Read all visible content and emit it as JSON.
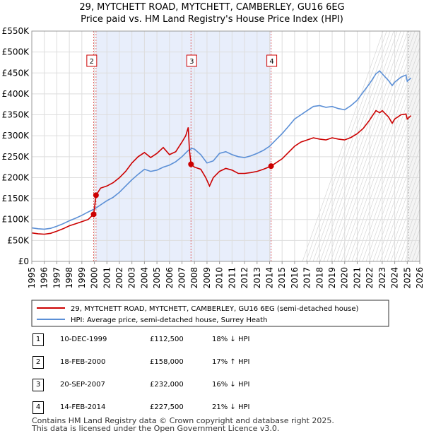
{
  "chart_data": {
    "type": "line",
    "title": "29, MYTCHETT ROAD, MYTCHETT, CAMBERLEY, GU16 6EG",
    "subtitle": "Price paid vs. HM Land Registry's House Price Index (HPI)",
    "xlim": [
      1995,
      2026
    ],
    "ylim": [
      0,
      550000
    ],
    "x_ticks": [
      "1995",
      "1996",
      "1997",
      "1998",
      "1999",
      "2000",
      "2001",
      "2002",
      "2003",
      "2004",
      "2005",
      "2006",
      "2007",
      "2008",
      "2009",
      "2010",
      "2011",
      "2012",
      "2013",
      "2014",
      "2015",
      "2016",
      "2017",
      "2018",
      "2019",
      "2020",
      "2021",
      "2022",
      "2023",
      "2024",
      "2025",
      "2026"
    ],
    "y_ticks": [
      {
        "value": 0,
        "label": "£0"
      },
      {
        "value": 50000,
        "label": "£50K"
      },
      {
        "value": 100000,
        "label": "£100K"
      },
      {
        "value": 150000,
        "label": "£150K"
      },
      {
        "value": 200000,
        "label": "£200K"
      },
      {
        "value": 250000,
        "label": "£250K"
      },
      {
        "value": 300000,
        "label": "£300K"
      },
      {
        "value": 350000,
        "label": "£350K"
      },
      {
        "value": 400000,
        "label": "£400K"
      },
      {
        "value": 450000,
        "label": "£450K"
      },
      {
        "value": 500000,
        "label": "£500K"
      },
      {
        "value": 550000,
        "label": "£550K"
      }
    ],
    "shaded_range": [
      2000.13,
      2014.12
    ],
    "projection_start": 2025.1,
    "series": [
      {
        "name": "29, MYTCHETT ROAD, MYTCHETT, CAMBERLEY, GU16 6EG (semi-detached house)",
        "color": "#cc0000",
        "points": [
          [
            1995.0,
            68000
          ],
          [
            1995.5,
            66000
          ],
          [
            1996.0,
            65000
          ],
          [
            1996.5,
            67000
          ],
          [
            1997.0,
            72000
          ],
          [
            1997.5,
            78000
          ],
          [
            1998.0,
            85000
          ],
          [
            1998.5,
            90000
          ],
          [
            1999.0,
            95000
          ],
          [
            1999.5,
            100000
          ],
          [
            1999.94,
            112500
          ],
          [
            2000.0,
            125000
          ],
          [
            2000.13,
            158000
          ],
          [
            2000.5,
            175000
          ],
          [
            2001.0,
            180000
          ],
          [
            2001.5,
            188000
          ],
          [
            2002.0,
            200000
          ],
          [
            2002.5,
            215000
          ],
          [
            2003.0,
            235000
          ],
          [
            2003.5,
            250000
          ],
          [
            2004.0,
            260000
          ],
          [
            2004.5,
            248000
          ],
          [
            2005.0,
            258000
          ],
          [
            2005.5,
            272000
          ],
          [
            2006.0,
            255000
          ],
          [
            2006.5,
            262000
          ],
          [
            2007.0,
            285000
          ],
          [
            2007.3,
            300000
          ],
          [
            2007.5,
            320000
          ],
          [
            2007.6,
            265000
          ],
          [
            2007.72,
            232000
          ],
          [
            2008.0,
            225000
          ],
          [
            2008.5,
            220000
          ],
          [
            2008.9,
            200000
          ],
          [
            2009.2,
            180000
          ],
          [
            2009.5,
            200000
          ],
          [
            2010.0,
            215000
          ],
          [
            2010.5,
            222000
          ],
          [
            2011.0,
            218000
          ],
          [
            2011.5,
            210000
          ],
          [
            2012.0,
            210000
          ],
          [
            2012.5,
            212000
          ],
          [
            2013.0,
            215000
          ],
          [
            2013.5,
            220000
          ],
          [
            2014.12,
            227500
          ],
          [
            2014.5,
            235000
          ],
          [
            2015.0,
            245000
          ],
          [
            2015.5,
            260000
          ],
          [
            2016.0,
            275000
          ],
          [
            2016.5,
            285000
          ],
          [
            2017.0,
            290000
          ],
          [
            2017.5,
            295000
          ],
          [
            2018.0,
            292000
          ],
          [
            2018.5,
            290000
          ],
          [
            2019.0,
            295000
          ],
          [
            2019.5,
            292000
          ],
          [
            2020.0,
            290000
          ],
          [
            2020.5,
            296000
          ],
          [
            2021.0,
            305000
          ],
          [
            2021.5,
            318000
          ],
          [
            2022.0,
            338000
          ],
          [
            2022.5,
            360000
          ],
          [
            2022.8,
            355000
          ],
          [
            2023.0,
            360000
          ],
          [
            2023.5,
            345000
          ],
          [
            2023.8,
            330000
          ],
          [
            2024.0,
            340000
          ],
          [
            2024.5,
            350000
          ],
          [
            2024.9,
            352000
          ],
          [
            2025.0,
            340000
          ],
          [
            2025.3,
            348000
          ]
        ]
      },
      {
        "name": "HPI: Average price, semi-detached house, Surrey Heath",
        "color": "#5b8fd6",
        "points": [
          [
            1995.0,
            80000
          ],
          [
            1995.5,
            78000
          ],
          [
            1996.0,
            77000
          ],
          [
            1996.5,
            79000
          ],
          [
            1997.0,
            84000
          ],
          [
            1997.5,
            90000
          ],
          [
            1998.0,
            97000
          ],
          [
            1998.5,
            103000
          ],
          [
            1999.0,
            110000
          ],
          [
            1999.5,
            118000
          ],
          [
            2000.0,
            125000
          ],
          [
            2000.5,
            135000
          ],
          [
            2001.0,
            145000
          ],
          [
            2001.5,
            153000
          ],
          [
            2002.0,
            165000
          ],
          [
            2002.5,
            180000
          ],
          [
            2003.0,
            195000
          ],
          [
            2003.5,
            208000
          ],
          [
            2004.0,
            220000
          ],
          [
            2004.5,
            215000
          ],
          [
            2005.0,
            218000
          ],
          [
            2005.5,
            225000
          ],
          [
            2006.0,
            230000
          ],
          [
            2006.5,
            238000
          ],
          [
            2007.0,
            250000
          ],
          [
            2007.5,
            265000
          ],
          [
            2007.8,
            270000
          ],
          [
            2008.0,
            268000
          ],
          [
            2008.5,
            255000
          ],
          [
            2009.0,
            235000
          ],
          [
            2009.5,
            240000
          ],
          [
            2010.0,
            258000
          ],
          [
            2010.5,
            262000
          ],
          [
            2011.0,
            255000
          ],
          [
            2011.5,
            250000
          ],
          [
            2012.0,
            248000
          ],
          [
            2012.5,
            252000
          ],
          [
            2013.0,
            258000
          ],
          [
            2013.5,
            265000
          ],
          [
            2014.0,
            275000
          ],
          [
            2014.5,
            290000
          ],
          [
            2015.0,
            305000
          ],
          [
            2015.5,
            322000
          ],
          [
            2016.0,
            340000
          ],
          [
            2016.5,
            350000
          ],
          [
            2017.0,
            360000
          ],
          [
            2017.5,
            370000
          ],
          [
            2018.0,
            372000
          ],
          [
            2018.5,
            368000
          ],
          [
            2019.0,
            370000
          ],
          [
            2019.5,
            365000
          ],
          [
            2020.0,
            362000
          ],
          [
            2020.5,
            372000
          ],
          [
            2021.0,
            385000
          ],
          [
            2021.5,
            405000
          ],
          [
            2022.0,
            425000
          ],
          [
            2022.5,
            448000
          ],
          [
            2022.8,
            455000
          ],
          [
            2023.0,
            448000
          ],
          [
            2023.5,
            432000
          ],
          [
            2023.8,
            420000
          ],
          [
            2024.0,
            428000
          ],
          [
            2024.5,
            440000
          ],
          [
            2024.9,
            445000
          ],
          [
            2025.0,
            430000
          ],
          [
            2025.3,
            438000
          ]
        ]
      }
    ],
    "transactions": [
      {
        "num": "1",
        "x": 1999.94,
        "price": 112500,
        "date": "10-DEC-1999",
        "price_label": "£112,500",
        "hpi_label": "18% ↓ HPI",
        "label_shown": false
      },
      {
        "num": "2",
        "x": 2000.13,
        "price": 158000,
        "date": "18-FEB-2000",
        "price_label": "£158,000",
        "hpi_label": "17% ↑ HPI",
        "label_shown": true
      },
      {
        "num": "3",
        "x": 2007.72,
        "price": 232000,
        "date": "20-SEP-2007",
        "price_label": "£232,000",
        "hpi_label": "16% ↓ HPI",
        "label_shown": true
      },
      {
        "num": "4",
        "x": 2014.12,
        "price": 227500,
        "date": "14-FEB-2014",
        "price_label": "£227,500",
        "hpi_label": "21% ↓ HPI",
        "label_shown": true
      }
    ],
    "legend": [
      {
        "label": "29, MYTCHETT ROAD, MYTCHETT, CAMBERLEY, GU16 6EG (semi-detached house)",
        "color": "#cc0000"
      },
      {
        "label": "HPI: Average price, semi-detached house, Surrey Heath",
        "color": "#5b8fd6"
      }
    ]
  },
  "footer": {
    "line1": "Contains HM Land Registry data © Crown copyright and database right 2025.",
    "line2": "This data is licensed under the Open Government Licence v3.0."
  }
}
